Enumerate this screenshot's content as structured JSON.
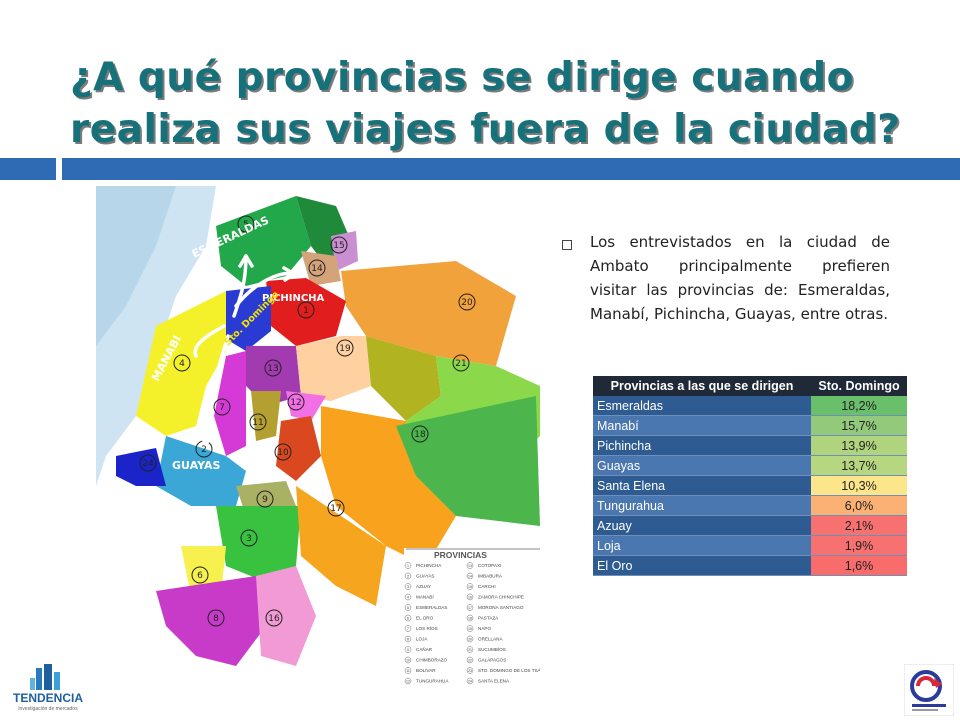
{
  "title": "¿A qué provincias se dirige cuando realiza sus viajes fuera de la ciudad?",
  "bullet": "Los entrevistados en la ciudad de Ambato principalmente prefieren visitar las provincias de: Esmeraldas, Manabí, Pichincha, Guayas, entre otras.",
  "table": {
    "header": [
      "Provincias a las que se dirigen",
      "Sto. Domingo"
    ],
    "rows": [
      {
        "name": "Esmeraldas",
        "value": "18,2%",
        "color": "#6abf6a"
      },
      {
        "name": "Manabí",
        "value": "15,7%",
        "color": "#93c97a"
      },
      {
        "name": "Pichincha",
        "value": "13,9%",
        "color": "#b0d47e"
      },
      {
        "name": "Guayas",
        "value": "13,7%",
        "color": "#b6d67f"
      },
      {
        "name": "Santa Elena",
        "value": "10,3%",
        "color": "#fde68a"
      },
      {
        "name": "Tungurahua",
        "value": "6,0%",
        "color": "#fbb173"
      },
      {
        "name": "Azuay",
        "value": "2,1%",
        "color": "#f87171"
      },
      {
        "name": "Loja",
        "value": "1,9%",
        "color": "#f87171"
      },
      {
        "name": "El Oro",
        "value": "1,6%",
        "color": "#f86c6c"
      }
    ],
    "row_bg": [
      "#2f5b93",
      "#4a77b0"
    ]
  },
  "map": {
    "labels": {
      "esmeraldas": "ESMERALDAS",
      "pichincha": "PICHINCHA",
      "manabi": "MANABI",
      "guayas": "GUAYAS",
      "sto_domingo": "Sto. Domingo"
    },
    "numbers": [
      "1",
      "2",
      "3",
      "4",
      "5",
      "6",
      "7",
      "8",
      "9",
      "10",
      "11",
      "12",
      "13",
      "14",
      "15",
      "16",
      "17",
      "18",
      "19",
      "20",
      "21",
      "24"
    ],
    "legend_title": "PROVINCIAS",
    "legend_left": [
      "PICHINCHA",
      "GUAYAS",
      "AZUAY",
      "MANABÍ",
      "ESMERALDAS",
      "EL ORO",
      "LOS RÍOS",
      "LOJA",
      "CAÑAR",
      "CHIMBORAZO",
      "BOLÍVAR",
      "TUNGURAHUA"
    ],
    "legend_right": [
      "COTOPAXI",
      "IMBABURA",
      "CARCHI",
      "ZAMORA CHINCHIPE",
      "MORONA SANTIAGO",
      "PASTAZA",
      "NAPO",
      "ORELLANA",
      "SUCUMBÍOS",
      "GALÁPAGOS",
      "STO. DOMINGO DE LOS TSÁCHILAS",
      "SANTA ELENA"
    ],
    "legend_left_nums": [
      "1",
      "2",
      "3",
      "4",
      "5",
      "6",
      "7",
      "8",
      "9",
      "10",
      "11",
      "12"
    ],
    "legend_right_nums": [
      "13",
      "14",
      "15",
      "16",
      "17",
      "18",
      "19",
      "20",
      "21",
      "22",
      "23",
      "24"
    ]
  },
  "logos": {
    "left_main": "TENDENCIA",
    "left_sub": "investigación de mercados"
  },
  "colors": {
    "title": "#17717a",
    "bar": "#2f6bb5",
    "header_bg": "#1f2937"
  }
}
